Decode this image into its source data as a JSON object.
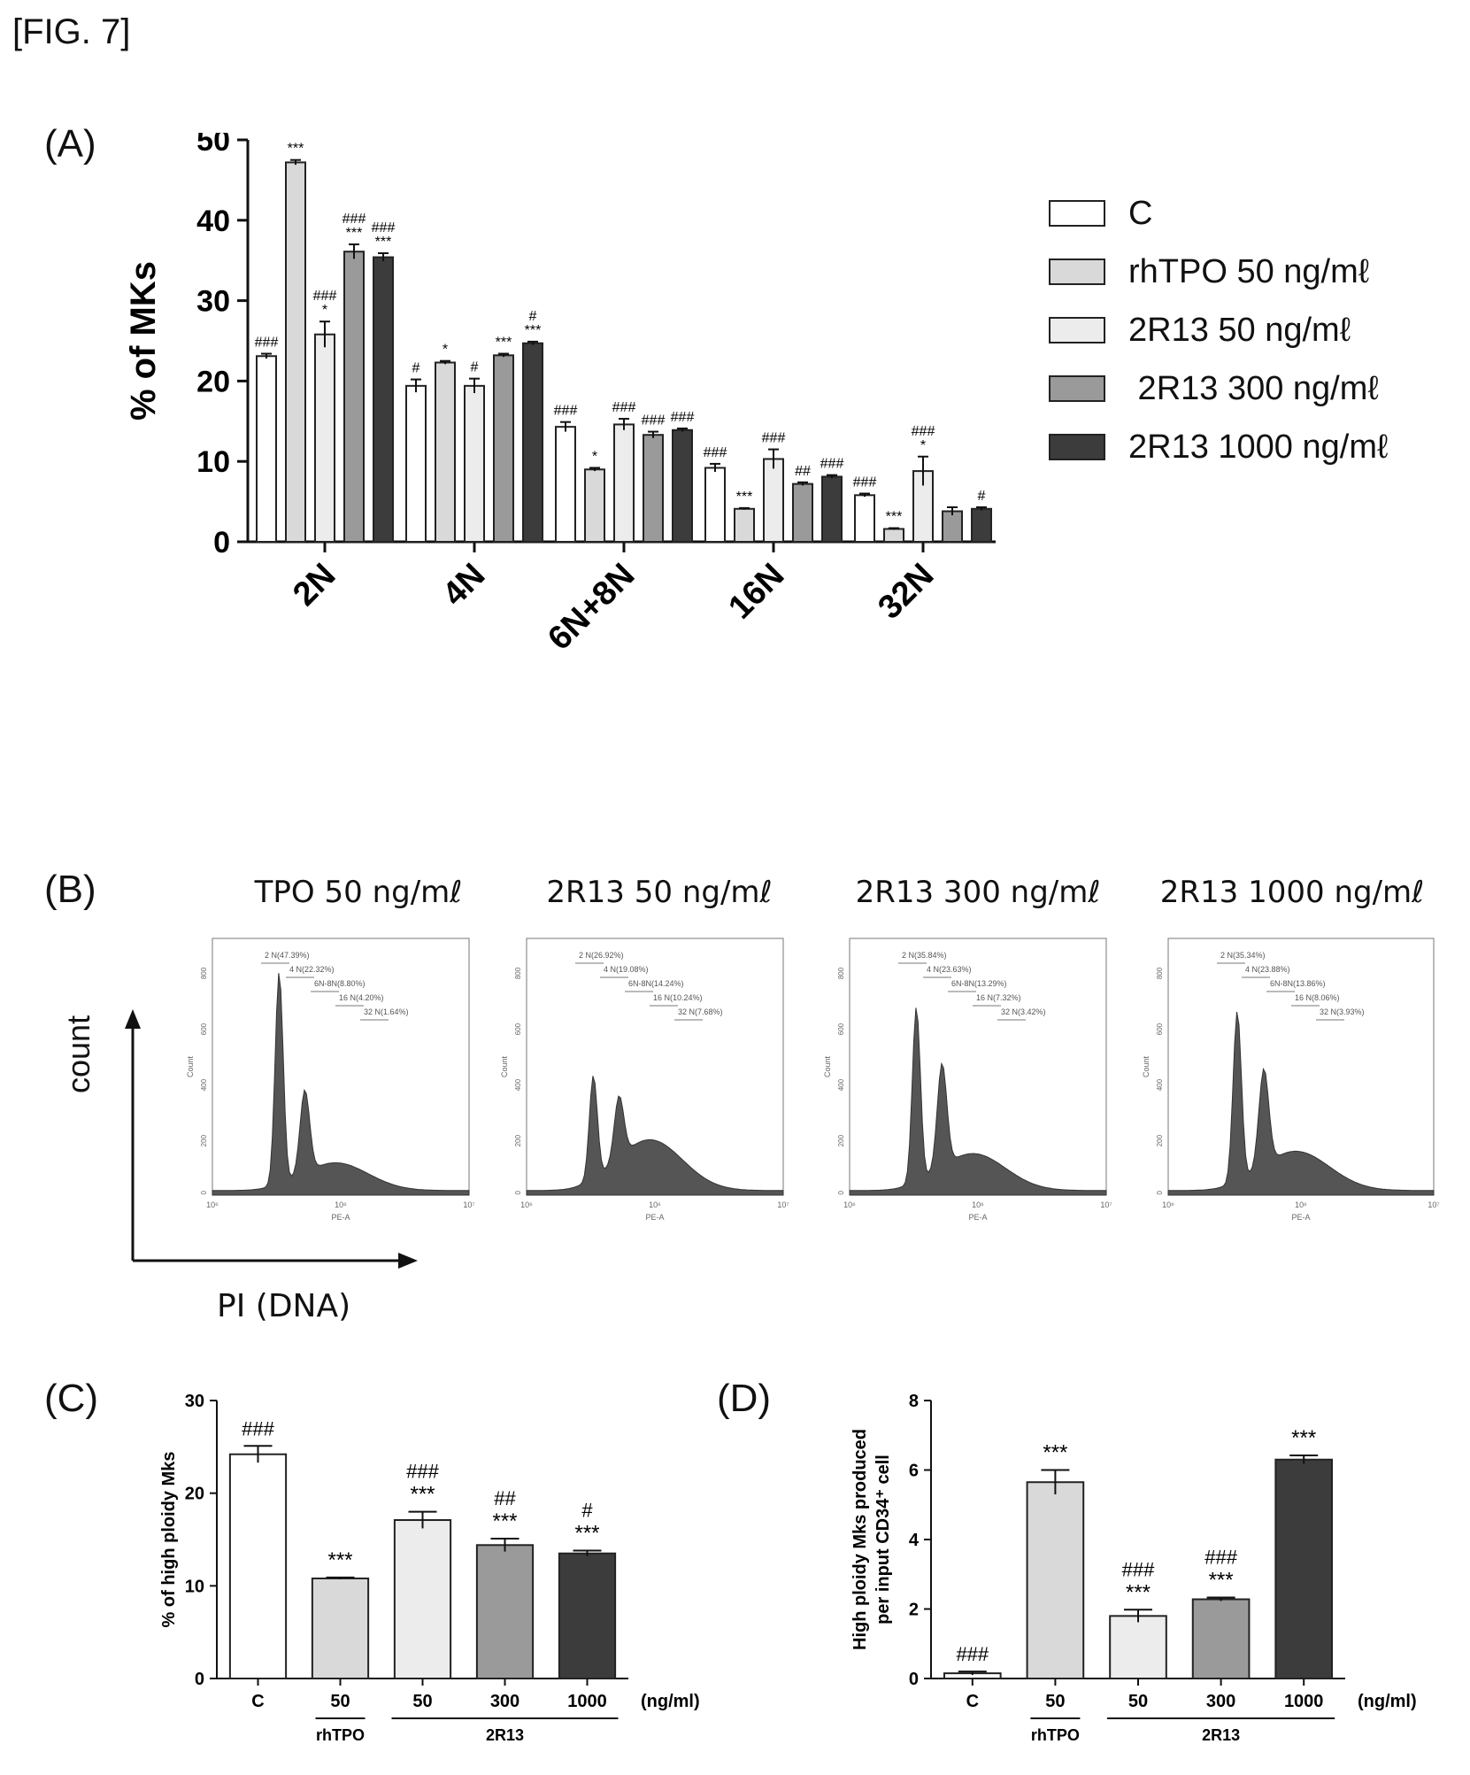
{
  "figure_label": "[FIG. 7]",
  "panels": {
    "A": "(A)",
    "B": "(B)",
    "C": "(C)",
    "D": "(D)"
  },
  "colors": {
    "C": "#ffffff",
    "rhTPO": "#d9d9d9",
    "R50": "#ececec",
    "R300": "#9a9a9a",
    "R1000": "#3c3c3c"
  },
  "chart_data": [
    {
      "panel": "A",
      "type": "bar",
      "ylabel": "% of MKs",
      "ylim": [
        0,
        50
      ],
      "yticks": [
        0,
        10,
        20,
        30,
        40,
        50
      ],
      "categories": [
        "2N",
        "4N",
        "6N+8N",
        "16N",
        "32N"
      ],
      "series": [
        {
          "name": "C",
          "values": [
            23.1,
            19.4,
            14.3,
            9.2,
            5.8
          ],
          "errors": [
            0.3,
            0.8,
            0.6,
            0.5,
            0.2
          ],
          "annot": [
            [
              "###"
            ],
            [
              "#"
            ],
            [
              "###"
            ],
            [
              "###"
            ],
            [
              "###"
            ]
          ]
        },
        {
          "name": "rhTPO 50 ng/mℓ",
          "values": [
            47.2,
            22.3,
            9.0,
            4.1,
            1.6
          ],
          "errors": [
            0.3,
            0.2,
            0.2,
            0.1,
            0.1
          ],
          "annot": [
            [
              "***"
            ],
            [
              "*"
            ],
            [
              "*"
            ],
            [
              "***"
            ],
            [
              "***"
            ]
          ]
        },
        {
          "name": "2R13 50 ng/mℓ",
          "values": [
            25.8,
            19.4,
            14.6,
            10.3,
            8.8
          ],
          "errors": [
            1.6,
            0.9,
            0.7,
            1.2,
            1.8
          ],
          "annot": [
            [
              "###",
              "*"
            ],
            [
              "#"
            ],
            [
              "###"
            ],
            [
              "###"
            ],
            [
              "###",
              "*"
            ]
          ]
        },
        {
          "name": "2R13 300 ng/mℓ",
          "values": [
            36.1,
            23.2,
            13.3,
            7.2,
            3.8
          ],
          "errors": [
            0.9,
            0.2,
            0.4,
            0.2,
            0.5
          ],
          "annot": [
            [
              "###",
              "***"
            ],
            [
              "***"
            ],
            [
              "###"
            ],
            [
              "##"
            ],
            []
          ]
        },
        {
          "name": "2R13 1000 ng/mℓ",
          "values": [
            35.4,
            24.7,
            13.9,
            8.1,
            4.1
          ],
          "errors": [
            0.5,
            0.2,
            0.2,
            0.2,
            0.2
          ],
          "annot": [
            [
              "###",
              "***"
            ],
            [
              "#",
              "***"
            ],
            [
              "###"
            ],
            [
              "###"
            ],
            [
              "#"
            ]
          ]
        }
      ],
      "legend": [
        "C",
        "rhTPO 50 ng/mℓ",
        "2R13 50 ng/mℓ",
        " 2R13 300 ng/mℓ",
        "2R13 1000 ng/mℓ"
      ]
    },
    {
      "panel": "C",
      "type": "bar",
      "ylabel": "% of high ploidy Mks",
      "ylim": [
        0,
        30
      ],
      "yticks": [
        0,
        10,
        20,
        30
      ],
      "categories": [
        "C",
        "50",
        "50",
        "300",
        "1000"
      ],
      "values": [
        24.2,
        10.8,
        17.1,
        14.4,
        13.5
      ],
      "errors": [
        0.9,
        0.1,
        0.9,
        0.7,
        0.3
      ],
      "annot": [
        [
          "###"
        ],
        [
          "***"
        ],
        [
          "###",
          "***"
        ],
        [
          "##",
          "***"
        ],
        [
          "#",
          "***"
        ]
      ],
      "unit": "(ng/ml)",
      "groups": [
        "rhTPO",
        "2R13"
      ]
    },
    {
      "panel": "D",
      "type": "bar",
      "ylabel_line1": "High ploidy Mks produced",
      "ylabel_line2": "per input CD34⁺ cell",
      "ylim": [
        0,
        8
      ],
      "yticks": [
        0,
        2,
        4,
        6,
        8
      ],
      "categories": [
        "C",
        "50",
        "50",
        "300",
        "1000"
      ],
      "values": [
        0.15,
        5.65,
        1.8,
        2.28,
        6.3
      ],
      "errors": [
        0.05,
        0.35,
        0.18,
        0.05,
        0.12
      ],
      "annot": [
        [
          "###"
        ],
        [
          "***"
        ],
        [
          "###",
          "***"
        ],
        [
          "###",
          "***"
        ],
        [
          "***"
        ]
      ],
      "unit": "(ng/ml)",
      "groups": [
        "rhTPO",
        "2R13"
      ]
    }
  ],
  "flow": {
    "y_axis_label": "count",
    "x_axis_label": "PI (DNA)",
    "x_axis_title": "PE-A",
    "y_axis_title": "Count",
    "x_ticks": [
      "10⁶",
      "10⁶",
      "10⁷"
    ],
    "y_ticks": [
      "0",
      "200",
      "400",
      "600",
      "800"
    ],
    "plots": [
      {
        "title": "TPO 50 ng/mℓ",
        "gates": [
          "2 N(47.39%)",
          "4 N(22.32%)",
          "6N-8N(8.80%)",
          "16 N(4.20%)",
          "32 N(1.64%)"
        ],
        "peak1": 0.92,
        "peak2": 0.36,
        "tail": 0.12
      },
      {
        "title": "2R13 50 ng/mℓ",
        "gates": [
          "2 N(26.92%)",
          "4 N(19.08%)",
          "6N-8N(14.24%)",
          "16 N(10.24%)",
          "32 N(7.68%)"
        ],
        "peak1": 0.45,
        "peak2": 0.27,
        "tail": 0.22
      },
      {
        "title": "2R13 300 ng/mℓ",
        "gates": [
          "2 N(35.84%)",
          "4 N(23.63%)",
          "6N-8N(13.29%)",
          "16 N(7.32%)",
          "32 N(3.42%)"
        ],
        "peak1": 0.76,
        "peak2": 0.45,
        "tail": 0.16
      },
      {
        "title": "2R13 1000 ng/mℓ",
        "gates": [
          "2 N(35.34%)",
          "4 N(23.88%)",
          "6N-8N(13.86%)",
          "16 N(8.06%)",
          "32 N(3.93%)"
        ],
        "peak1": 0.74,
        "peak2": 0.42,
        "tail": 0.17
      }
    ]
  }
}
